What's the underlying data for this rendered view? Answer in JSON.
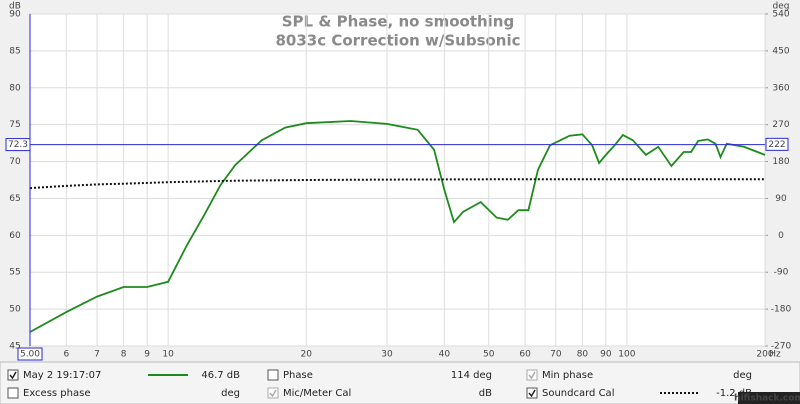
{
  "chart_data": {
    "type": "line",
    "title": "SPL & Phase, no smoothing",
    "subtitle": "8033c Correction w/Subsonic",
    "y_unit": "dB",
    "y2_unit": "deg",
    "x_unit": "Hz",
    "xscale": "log",
    "grid": true,
    "xlim": [
      5,
      200
    ],
    "ylim": [
      45,
      90
    ],
    "y2lim": [
      -270,
      540
    ],
    "xticks": [
      6,
      7,
      8,
      9,
      10,
      20,
      30,
      40,
      50,
      60,
      70,
      80,
      90,
      100,
      200
    ],
    "yticks": [
      45,
      50,
      55,
      60,
      65,
      70,
      75,
      80,
      85,
      90
    ],
    "y2ticks": [
      -270,
      -180,
      -90,
      0,
      90,
      180,
      270,
      360,
      450,
      540
    ],
    "cursor": {
      "x": {
        "value": 5,
        "label": "5.00"
      },
      "y": 72.3,
      "y2": 222
    },
    "series": [
      {
        "name": "May 2 19:17:07",
        "color": "#1e8a1e",
        "style": "solid",
        "checked": true,
        "reading": "46.7 dB",
        "x": [
          5,
          6,
          7,
          8,
          9,
          10,
          11,
          12,
          13,
          14,
          16,
          18,
          20,
          25,
          30,
          35,
          38,
          40,
          42,
          44,
          48,
          52,
          55,
          58,
          61,
          64,
          68,
          75,
          80,
          84,
          87,
          90,
          94,
          98,
          103,
          110,
          117,
          125,
          133,
          138,
          143,
          150,
          156,
          160,
          165,
          180,
          200
        ],
        "values": [
          46.9,
          49.6,
          51.7,
          53.0,
          53.0,
          53.7,
          58.7,
          62.8,
          66.8,
          69.5,
          72.9,
          74.6,
          75.2,
          75.5,
          75.1,
          74.3,
          71.6,
          66.2,
          61.8,
          63.2,
          64.5,
          62.4,
          62.1,
          63.4,
          63.4,
          68.9,
          72.2,
          73.5,
          73.7,
          72.2,
          69.8,
          70.9,
          72.2,
          73.6,
          72.9,
          70.9,
          72.0,
          69.4,
          71.3,
          71.3,
          72.8,
          73.0,
          72.4,
          70.6,
          72.4,
          72.0,
          70.9
        ]
      },
      {
        "name": "Soundcard Cal",
        "color": "#111111",
        "style": "dotted",
        "checked": true,
        "reading": "-1.2 dB",
        "x": [
          5,
          6,
          7,
          8,
          10,
          14,
          20,
          30,
          50,
          100,
          200
        ],
        "values": [
          66.4,
          66.7,
          66.9,
          67.0,
          67.2,
          67.4,
          67.5,
          67.55,
          67.6,
          67.6,
          67.6
        ]
      }
    ]
  },
  "panel": {
    "items": [
      {
        "label": "Phase",
        "checked": false,
        "enabled": true,
        "reading": "114 deg"
      },
      {
        "label": "Min phase",
        "checked": true,
        "enabled": false,
        "reading": "deg"
      },
      {
        "label": "Excess phase",
        "checked": false,
        "enabled": true,
        "reading": "deg"
      },
      {
        "label": "Mic/Meter Cal",
        "checked": true,
        "enabled": false,
        "reading": "dB"
      }
    ]
  },
  "watermark": "hifishack.com"
}
